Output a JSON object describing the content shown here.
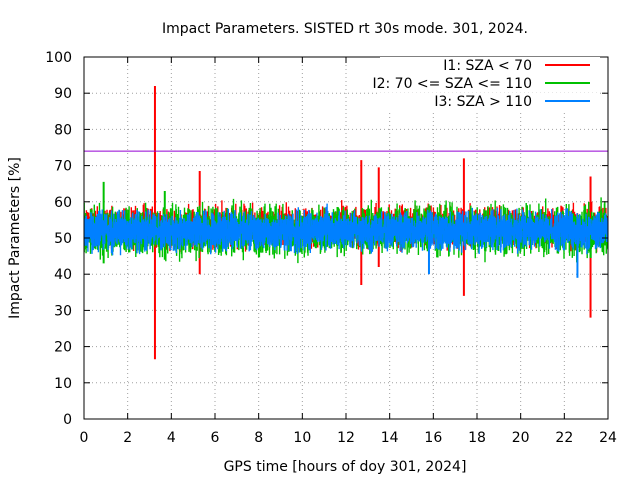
{
  "chart_data": {
    "type": "line",
    "title": "Impact Parameters. SISTED rt 30s mode. 301, 2024.",
    "xlabel": "GPS time [hours of doy 301, 2024]",
    "ylabel": "Impact Parameters [%]",
    "xlim": [
      0,
      24
    ],
    "ylim": [
      0,
      100
    ],
    "xticks": [
      0,
      2,
      4,
      6,
      8,
      10,
      12,
      14,
      16,
      18,
      20,
      22,
      24
    ],
    "yticks": [
      0,
      10,
      20,
      30,
      40,
      50,
      60,
      70,
      80,
      90,
      100
    ],
    "grid": true,
    "legend_position": "top-right",
    "threshold_line": {
      "y": 74,
      "color": "#9400d3"
    },
    "series": [
      {
        "name": "I1: SZA < 70",
        "color": "#ff0000",
        "baseline": 53,
        "band": [
          47,
          59
        ],
        "spikes": [
          [
            3.25,
            92,
            16.5
          ],
          [
            5.3,
            68.5,
            40
          ],
          [
            12.7,
            71.5,
            37
          ],
          [
            13.5,
            69.5,
            42
          ],
          [
            17.4,
            72,
            34
          ],
          [
            23.2,
            67,
            28
          ]
        ]
      },
      {
        "name": "I2: 70 <= SZA <= 110",
        "color": "#00c000",
        "baseline": 52,
        "band": [
          45,
          60
        ],
        "spikes": [
          [
            0.9,
            65.5,
            43
          ],
          [
            3.7,
            63,
            44
          ]
        ]
      },
      {
        "name": "I3: SZA > 110",
        "color": "#0080ff",
        "baseline": 52,
        "band": [
          46,
          58
        ],
        "spikes": [
          [
            15.8,
            57,
            40
          ],
          [
            22.6,
            56,
            39
          ]
        ]
      }
    ]
  }
}
